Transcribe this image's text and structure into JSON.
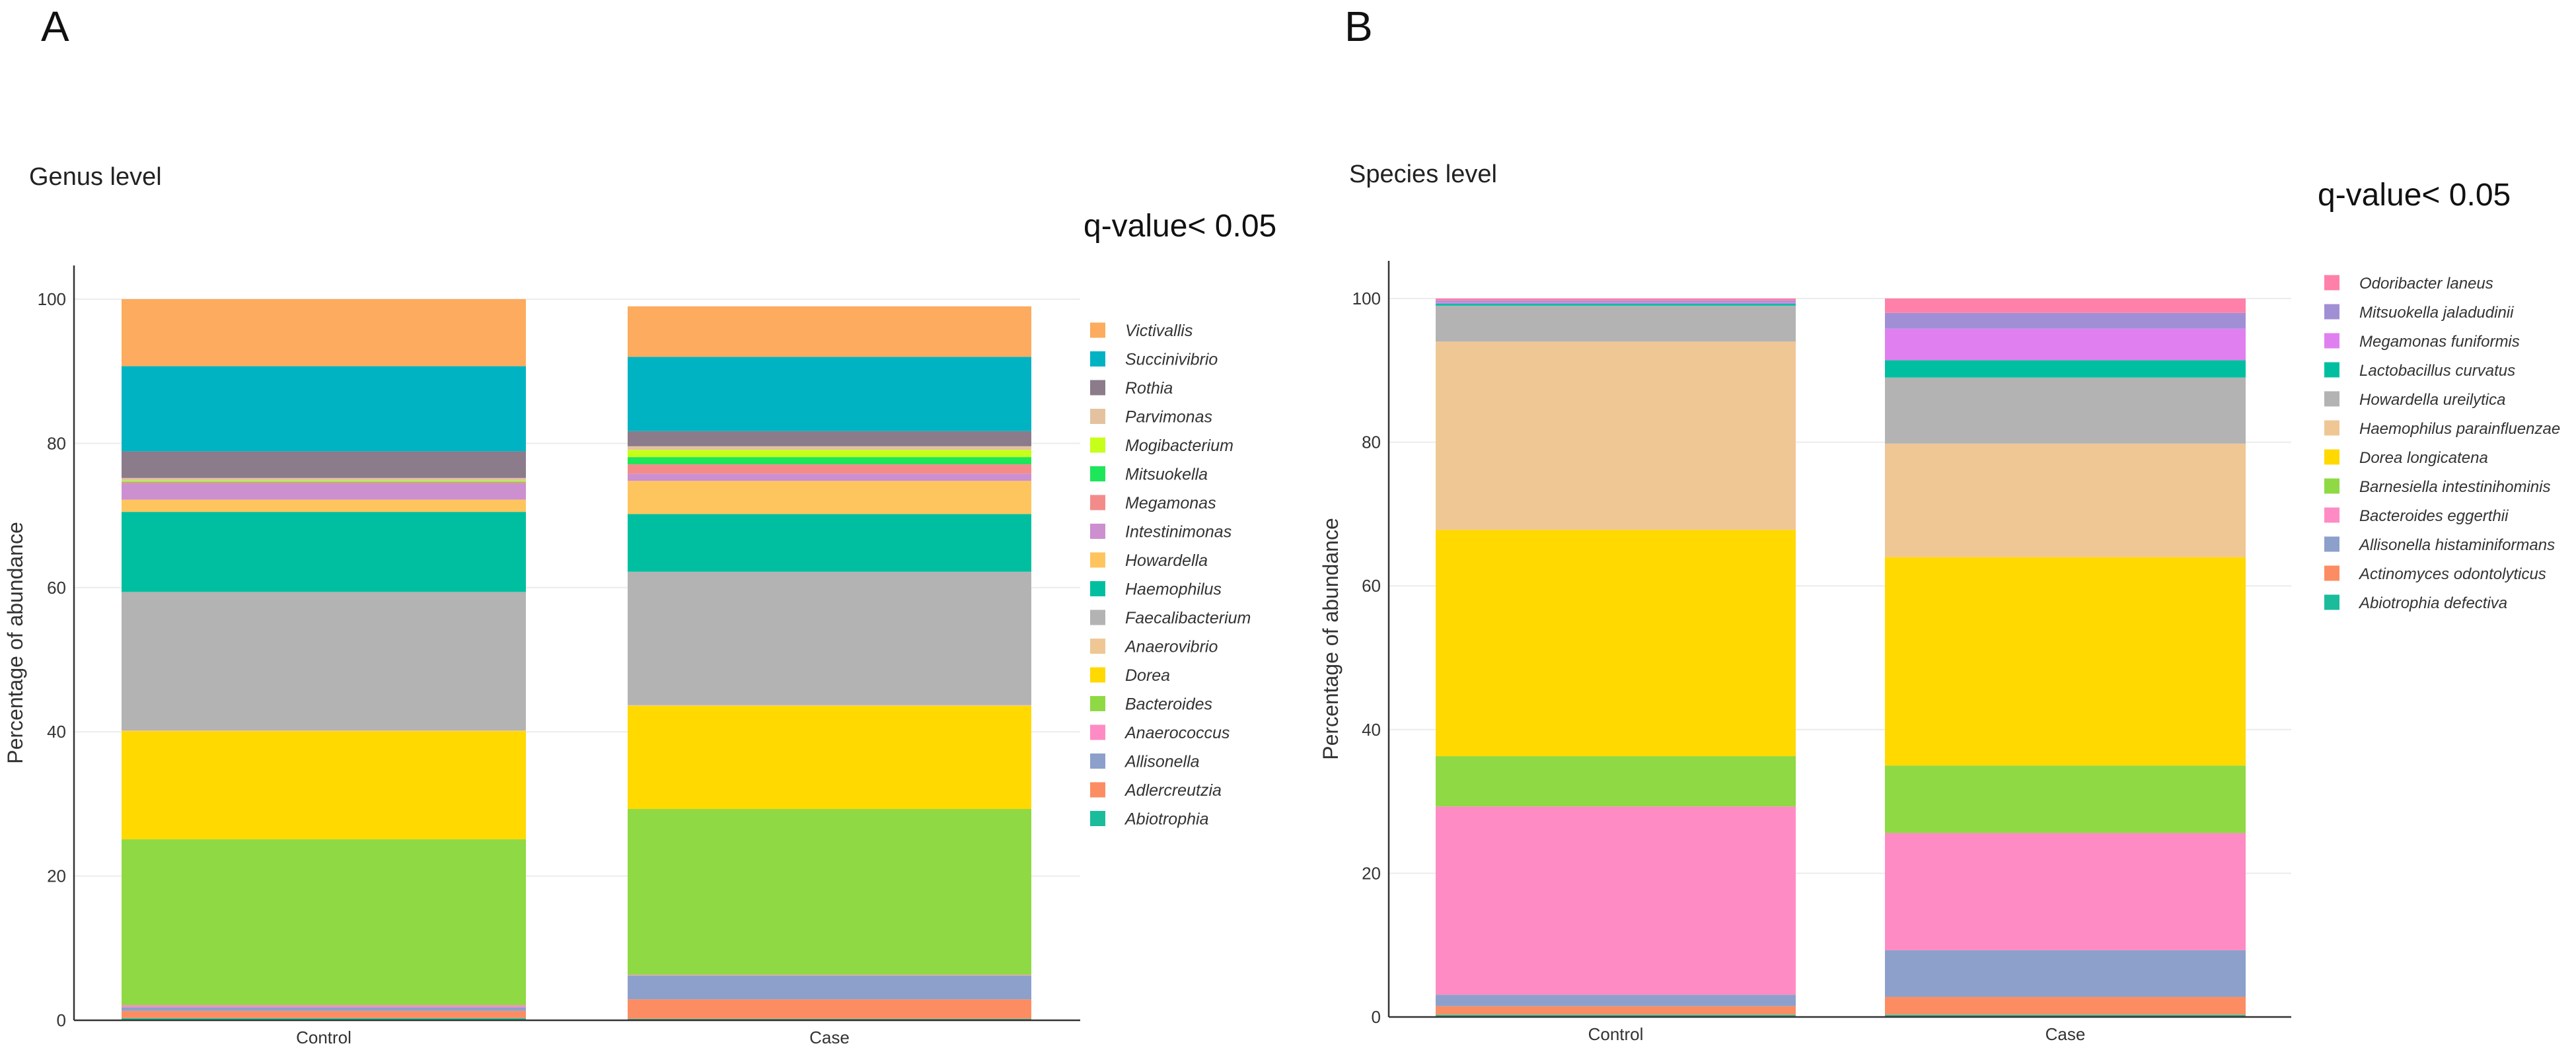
{
  "chart_data": [
    {
      "type": "bar",
      "stacked": true,
      "panel_label": "A",
      "title": "Genus level",
      "annotation": "q-value< 0.05",
      "xlabel": "",
      "ylabel": "Percentage of abundance",
      "ylim": [
        0,
        100
      ],
      "yticks": [
        "0",
        "20",
        "40",
        "60",
        "80",
        "100"
      ],
      "grid": true,
      "legend_position": "right",
      "categories": [
        "Control",
        "Case"
      ],
      "series": [
        {
          "name": "Abiotrophia",
          "color": "#1abc9c",
          "values": [
            0.3,
            0.2
          ]
        },
        {
          "name": "Adlercreutzia",
          "color": "#fc8d62",
          "values": [
            1.0,
            2.7
          ]
        },
        {
          "name": "Allisonella",
          "color": "#8da0cb",
          "values": [
            0.5,
            3.3
          ]
        },
        {
          "name": "Anaerococcus",
          "color": "#ff8bc4",
          "values": [
            0.3,
            0.1
          ]
        },
        {
          "name": "Bacteroides",
          "color": "#8fd944",
          "values": [
            23.0,
            23.0
          ]
        },
        {
          "name": "Dorea",
          "color": "#ffd900",
          "values": [
            15.0,
            14.3
          ]
        },
        {
          "name": "Anaerovibrio",
          "color": "#efc795",
          "values": [
            0.1,
            0.1
          ]
        },
        {
          "name": "Faecalibacterium",
          "color": "#b3b3b3",
          "values": [
            19.2,
            18.5
          ]
        },
        {
          "name": "Haemophilus",
          "color": "#00bfa0",
          "values": [
            11.1,
            8.0
          ]
        },
        {
          "name": "Howardella",
          "color": "#fec55e",
          "values": [
            1.7,
            4.6
          ]
        },
        {
          "name": "Intestinimonas",
          "color": "#cc8fd0",
          "values": [
            2.2,
            1.0
          ]
        },
        {
          "name": "Megamonas",
          "color": "#f48b8b",
          "values": [
            0.2,
            1.3
          ]
        },
        {
          "name": "Mitsuokella",
          "color": "#1ee65a",
          "values": [
            0.1,
            1.0
          ]
        },
        {
          "name": "Mogibacterium",
          "color": "#c6ff1a",
          "values": [
            0.1,
            1.0
          ]
        },
        {
          "name": "Parvimonas",
          "color": "#e5c29f",
          "values": [
            0.4,
            0.5
          ]
        },
        {
          "name": "Rothia",
          "color": "#8b7b8b",
          "values": [
            3.7,
            2.1
          ]
        },
        {
          "name": "Succinivibrio",
          "color": "#00b3c3",
          "values": [
            11.8,
            10.3
          ]
        },
        {
          "name": "Victivallis",
          "color": "#fdab5e",
          "values": [
            9.3,
            7.0
          ]
        }
      ]
    },
    {
      "type": "bar",
      "stacked": true,
      "panel_label": "B",
      "title": "Species level",
      "annotation": "q-value< 0.05",
      "xlabel": "",
      "ylabel": "Percentage of abundance",
      "ylim": [
        0,
        100
      ],
      "yticks": [
        "0",
        "20",
        "40",
        "60",
        "80",
        "100"
      ],
      "grid": true,
      "legend_position": "right",
      "categories": [
        "Control",
        "Case"
      ],
      "series": [
        {
          "name": "Abiotrophia defectiva",
          "color": "#1abc9c",
          "values": [
            0.3,
            0.3
          ]
        },
        {
          "name": "Actinomyces odontolyticus",
          "color": "#fc8d62",
          "values": [
            1.2,
            2.5
          ]
        },
        {
          "name": "Allisonella histaminiformans",
          "color": "#8da0cb",
          "values": [
            1.6,
            6.5
          ]
        },
        {
          "name": "Bacteroides eggerthii",
          "color": "#ff8bc4",
          "values": [
            26.2,
            16.3
          ]
        },
        {
          "name": "Barnesiella intestinihominis",
          "color": "#8fd944",
          "values": [
            7.0,
            9.4
          ]
        },
        {
          "name": "Dorea longicatena",
          "color": "#ffd900",
          "values": [
            31.5,
            29.0
          ]
        },
        {
          "name": "Haemophilus parainfluenzae",
          "color": "#efc795",
          "values": [
            26.2,
            15.8
          ]
        },
        {
          "name": "Howardella ureilytica",
          "color": "#b3b3b3",
          "values": [
            5.0,
            9.2
          ]
        },
        {
          "name": "Lactobacillus curvatus",
          "color": "#00bfa0",
          "values": [
            0.3,
            2.4
          ]
        },
        {
          "name": "Megamonas funiformis",
          "color": "#e080f0",
          "values": [
            0.2,
            4.4
          ]
        },
        {
          "name": "Mitsuokella jaladudinii",
          "color": "#a18fd5",
          "values": [
            0.2,
            2.2
          ]
        },
        {
          "name": "Odoribacter laneus",
          "color": "#ff80a8",
          "values": [
            0.3,
            2.0
          ]
        }
      ]
    }
  ]
}
